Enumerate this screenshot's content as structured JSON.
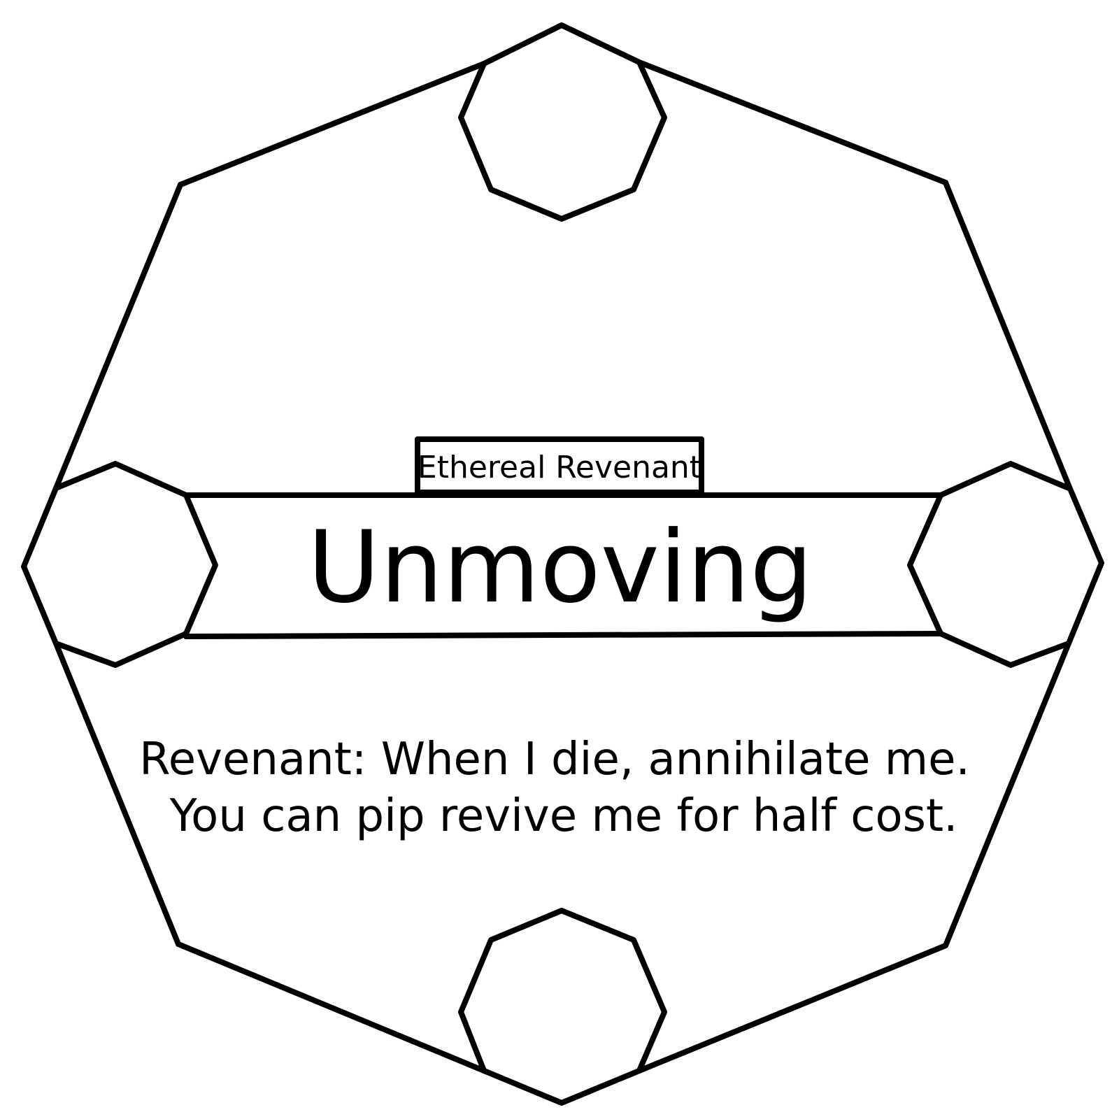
{
  "card": {
    "subtype": "Ethereal Revenant",
    "name": "Unmoving",
    "rules": {
      "keyword": "Revenant:",
      "line1_rest": " When I die, annihilate me.",
      "line2": "You can pip revive me for half cost."
    }
  },
  "colors": {
    "ink": "#000000",
    "background": "#ffffff"
  }
}
